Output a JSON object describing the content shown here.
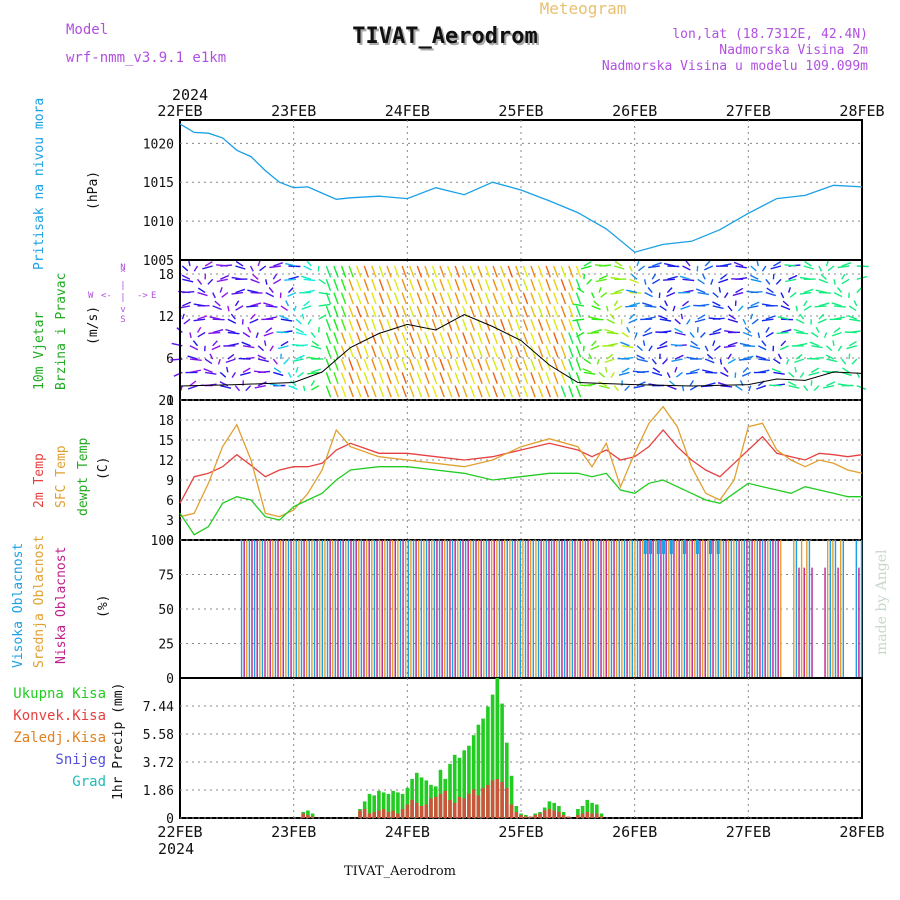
{
  "header": {
    "model_label": "Model",
    "model_name": "wrf-nmm_v3.9.1 e1km",
    "title": "TIVAT_Aerodrom",
    "subtitle": "Meteogram",
    "coords": "lon,lat (18.7312E, 42.4N)",
    "elevation": "Nadmorska Visina 2m",
    "model_elevation": "Nadmorska Visina u modelu 109.099m",
    "year_top": "2024",
    "year_bottom": "2024",
    "footer": "TIVAT_Aerodrom",
    "watermark": "made by Angel"
  },
  "colors": {
    "pressure": "#1aa0e6",
    "temp2m": "#e64040",
    "sfc": "#e0a030",
    "dewpt": "#22cc22",
    "cloud_high": "#1aa0e6",
    "cloud_mid": "#e0a030",
    "cloud_low": "#c0208a",
    "precip_total": "#22cc22",
    "precip_conv": "#e64040",
    "grid": "#888888",
    "label_purple": "#b050e0",
    "watermark": "#c8d8c8"
  },
  "chart_data": [
    {
      "type": "line",
      "title": "Pritisak na nivou mora",
      "ylabel": "(hPa)",
      "ylim": [
        1005,
        1023
      ],
      "yticks": [
        "1020",
        "1015",
        "1010",
        "1005"
      ],
      "x_dates": [
        "22FEB",
        "23FEB",
        "24FEB",
        "25FEB",
        "26FEB",
        "27FEB",
        "28FEB"
      ],
      "x_hours": [
        0,
        3,
        6,
        9,
        12,
        15,
        18,
        21,
        24,
        27,
        30,
        33,
        36,
        42,
        48,
        54,
        60,
        66,
        72,
        78,
        84,
        90,
        96,
        102,
        108,
        114,
        120,
        126,
        132,
        138,
        144
      ],
      "series": [
        {
          "name": "",
          "values": [
            1022.5,
            1021.4,
            1021.3,
            1020.7,
            1019.1,
            1018.3,
            1016.5,
            1015.0,
            1014.3,
            1014.4,
            1013.6,
            1012.8,
            1013.0,
            1013.2,
            1012.9,
            1014.3,
            1013.4,
            1015.0,
            1014.0,
            1012.6,
            1011.1,
            1009.0,
            1006.0,
            1007.0,
            1007.4,
            1008.9,
            1011.0,
            1012.9,
            1013.3,
            1014.6,
            1014.4
          ]
        }
      ],
      "grid": true
    },
    {
      "type": "line",
      "title": "10m Vjetar Brzina i Pravac",
      "ylabel": "(m/s)",
      "ylim": [
        0,
        20
      ],
      "yticks": [
        "18",
        "12",
        "6",
        "0"
      ],
      "direction_legend": "N W E S",
      "x_hours": [
        0,
        12,
        24,
        30,
        36,
        42,
        48,
        54,
        60,
        66,
        72,
        78,
        84,
        96,
        108,
        120,
        126,
        132,
        138,
        144
      ],
      "series": [
        {
          "name": "",
          "values": [
            2.0,
            2.2,
            2.5,
            4.0,
            7.5,
            9.5,
            10.8,
            10.0,
            12.2,
            10.5,
            8.5,
            5.0,
            2.5,
            2.2,
            2.0,
            2.2,
            3.0,
            2.8,
            4.0,
            3.8
          ]
        }
      ],
      "grid": true
    },
    {
      "type": "line",
      "title": "2m Temp / SFC Temp / dewpt Temp",
      "ylabel": "(C)",
      "ylim": [
        0,
        21
      ],
      "yticks": [
        "21",
        "18",
        "15",
        "12",
        "9",
        "6",
        "3",
        "0"
      ],
      "x_hours": [
        0,
        3,
        6,
        9,
        12,
        15,
        18,
        21,
        24,
        27,
        30,
        33,
        36,
        42,
        48,
        54,
        60,
        66,
        72,
        78,
        84,
        87,
        90,
        93,
        96,
        99,
        102,
        105,
        108,
        111,
        114,
        117,
        120,
        123,
        126,
        129,
        132,
        135,
        138,
        141,
        144
      ],
      "series": [
        {
          "name": "2m Temp",
          "values": [
            5.5,
            9.5,
            10.0,
            11.0,
            12.8,
            11.2,
            9.5,
            10.5,
            11.0,
            11.0,
            11.5,
            13.5,
            14.5,
            13.0,
            13.0,
            12.5,
            12.0,
            12.5,
            13.5,
            14.5,
            13.5,
            12.5,
            13.5,
            12.0,
            12.5,
            14.0,
            16.5,
            14.0,
            12.0,
            10.5,
            9.5,
            11.5,
            13.5,
            15.5,
            13.0,
            12.5,
            12.0,
            13.0,
            12.8,
            12.5,
            12.8
          ]
        },
        {
          "name": "SFC Temp",
          "values": [
            3.5,
            4.0,
            8.5,
            14.0,
            17.3,
            12.0,
            4.0,
            3.5,
            4.5,
            7.0,
            10.5,
            16.5,
            14.0,
            12.5,
            12.0,
            11.5,
            11.0,
            12.0,
            14.0,
            15.2,
            14.0,
            11.0,
            14.5,
            8.0,
            13.0,
            17.5,
            20.0,
            17.0,
            11.0,
            7.0,
            6.0,
            9.0,
            17.0,
            17.5,
            13.5,
            12.0,
            11.0,
            12.0,
            11.5,
            10.5,
            10.0
          ]
        },
        {
          "name": "dewpt Temp",
          "values": [
            4.0,
            0.8,
            2.0,
            5.5,
            6.5,
            6.0,
            3.5,
            3.0,
            5.0,
            6.0,
            7.0,
            9.0,
            10.5,
            11.0,
            11.0,
            10.5,
            10.0,
            9.0,
            9.5,
            10.0,
            10.0,
            9.5,
            10.0,
            7.5,
            7.0,
            8.5,
            9.0,
            8.0,
            7.0,
            6.0,
            5.5,
            7.0,
            8.5,
            8.0,
            7.5,
            7.0,
            8.0,
            7.5,
            7.0,
            6.5,
            6.5
          ]
        }
      ],
      "grid": true
    },
    {
      "type": "bar",
      "title": "Visoka Oblacnost / Srednja Oblacnost / Niska Oblacnost",
      "ylabel": "(%)",
      "ylim": [
        0,
        100
      ],
      "yticks": [
        "100",
        "75",
        "50",
        "25",
        "0"
      ],
      "cloud_start_hour": 13,
      "cloud_end_hour": 144,
      "series": [
        {
          "name": "Visoka Oblacnost",
          "values": [
            100
          ]
        },
        {
          "name": "Srednja Oblacnost",
          "values": [
            100
          ]
        },
        {
          "name": "Niska Oblacnost",
          "values": [
            100
          ]
        }
      ],
      "grid": true
    },
    {
      "type": "bar",
      "title": "1hr Precip",
      "ylabel": "1hr Precip (mm)",
      "ylim": [
        0,
        9.3
      ],
      "yticks": [
        "7.44",
        "5.58",
        "3.72",
        "1.86",
        "0"
      ],
      "legend": [
        "Ukupna Kisa",
        "Konvek.Kisa",
        "Zaledj.Kisa",
        "Snijeg",
        "Grad"
      ],
      "legend_colors": [
        "#22cc22",
        "#e64040",
        "#e08020",
        "#5050dd",
        "#22bbbb"
      ],
      "x_hours": [
        26,
        27,
        28,
        38,
        39,
        40,
        41,
        42,
        43,
        44,
        45,
        46,
        47,
        48,
        49,
        50,
        51,
        52,
        53,
        54,
        55,
        56,
        57,
        58,
        59,
        60,
        61,
        62,
        63,
        64,
        65,
        66,
        67,
        68,
        69,
        70,
        71,
        72,
        73,
        74,
        75,
        76,
        77,
        78,
        79,
        80,
        81,
        82,
        84,
        85,
        86,
        87,
        88,
        89
      ],
      "series": [
        {
          "name": "Ukupna Kisa",
          "values": [
            0.4,
            0.5,
            0.3,
            0.6,
            1.1,
            1.6,
            1.5,
            1.8,
            1.7,
            1.6,
            1.8,
            1.7,
            1.6,
            2.0,
            2.6,
            3.0,
            2.7,
            2.5,
            2.2,
            2.1,
            3.2,
            2.6,
            3.6,
            4.2,
            4.0,
            4.5,
            4.8,
            5.5,
            6.2,
            6.6,
            7.4,
            8.2,
            9.3,
            7.6,
            5.0,
            2.8,
            0.8,
            0.3,
            0.2,
            0.1,
            0.3,
            0.4,
            0.7,
            1.1,
            1.0,
            0.8,
            0.4,
            0.1,
            0.6,
            0.8,
            1.2,
            1.0,
            0.9,
            0.3
          ]
        },
        {
          "name": "Konvek.Kisa",
          "values": [
            0.3,
            0.2,
            0.1,
            0.5,
            0.6,
            0.3,
            0.4,
            0.5,
            0.6,
            0.4,
            0.5,
            0.3,
            0.6,
            0.9,
            1.2,
            1.0,
            0.8,
            0.9,
            1.3,
            1.4,
            1.6,
            1.8,
            1.2,
            1.0,
            1.4,
            1.3,
            1.6,
            1.9,
            1.5,
            2.0,
            2.2,
            2.5,
            2.6,
            2.4,
            2.0,
            0.9,
            0.4,
            0.2,
            0.1,
            0.1,
            0.2,
            0.3,
            0.5,
            0.6,
            0.5,
            0.4,
            0.2,
            0.1,
            0.2,
            0.3,
            0.4,
            0.3,
            0.3,
            0.1
          ]
        }
      ],
      "grid": true
    }
  ]
}
